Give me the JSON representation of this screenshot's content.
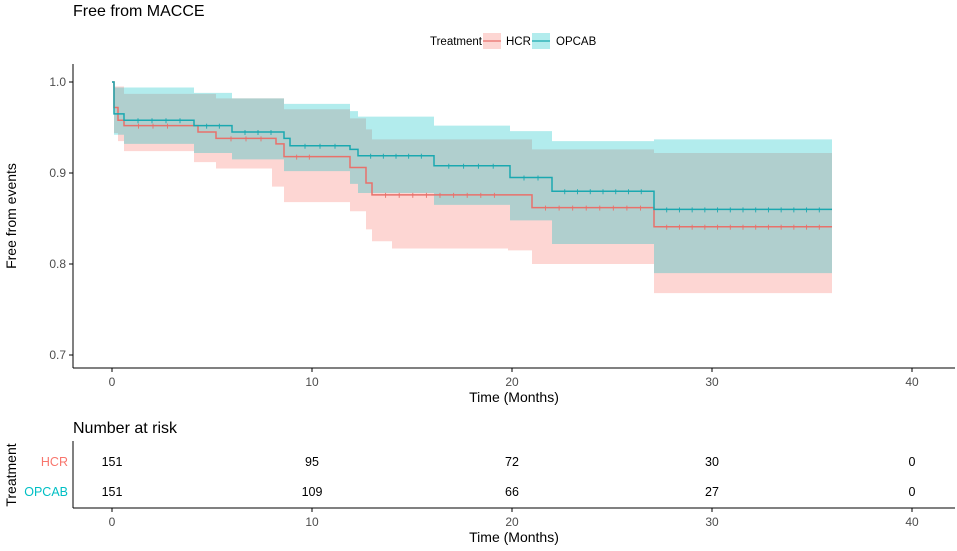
{
  "chart_data": {
    "type": "kaplan-meier step line with confidence bands and risk table",
    "title": "Free from MACCE",
    "xlabel": "Time (Months)",
    "ylabel": "Free from events",
    "xlim": [
      -2,
      40
    ],
    "ylim": [
      0.69,
      1.0
    ],
    "xticks": [
      0,
      10,
      20,
      30,
      40
    ],
    "yticks": [
      0.7,
      0.8,
      0.9,
      1.0
    ],
    "ytick_labels": [
      "0.7",
      "0.8",
      "0.9",
      "1.0"
    ],
    "grid": false,
    "legend": {
      "title": "Treatment",
      "position": "top",
      "entries": [
        "HCR",
        "OPCAB"
      ]
    },
    "series": [
      {
        "name": "HCR",
        "color": "#e8716b",
        "band_color": "#f8766d",
        "steps": [
          [
            0,
            1.0
          ],
          [
            0.1,
            0.972
          ],
          [
            0.3,
            0.958
          ],
          [
            0.6,
            0.952
          ],
          [
            3.5,
            0.952
          ],
          [
            4.3,
            0.945
          ],
          [
            5.2,
            0.938
          ],
          [
            8.2,
            0.932
          ],
          [
            8.6,
            0.918
          ],
          [
            10.5,
            0.918
          ],
          [
            11.9,
            0.906
          ],
          [
            12.7,
            0.889
          ],
          [
            13.0,
            0.876
          ],
          [
            19.8,
            0.876
          ],
          [
            21.0,
            0.862
          ],
          [
            27.1,
            0.862
          ],
          [
            27.1,
            0.841
          ],
          [
            36.0,
            0.841
          ]
        ],
        "lower": [
          [
            0,
            1.0
          ],
          [
            0.1,
            0.944
          ],
          [
            0.3,
            0.935
          ],
          [
            0.6,
            0.924
          ],
          [
            4.1,
            0.912
          ],
          [
            5.2,
            0.905
          ],
          [
            8.0,
            0.885
          ],
          [
            8.6,
            0.868
          ],
          [
            11.9,
            0.858
          ],
          [
            12.7,
            0.838
          ],
          [
            13.0,
            0.825
          ],
          [
            14.0,
            0.817
          ],
          [
            19.8,
            0.815
          ],
          [
            21.0,
            0.8
          ],
          [
            27.1,
            0.768
          ],
          [
            36.0,
            0.768
          ]
        ],
        "upper": [
          [
            0,
            1.0
          ],
          [
            0.1,
            0.995
          ],
          [
            0.6,
            0.987
          ],
          [
            5.2,
            0.982
          ],
          [
            8.6,
            0.97
          ],
          [
            11.9,
            0.96
          ],
          [
            12.7,
            0.948
          ],
          [
            13.0,
            0.937
          ],
          [
            21.0,
            0.926
          ],
          [
            27.1,
            0.922
          ],
          [
            36.0,
            0.922
          ]
        ]
      },
      {
        "name": "OPCAB",
        "color": "#1aa8b0",
        "band_color": "#00bfc4",
        "steps": [
          [
            0,
            1.0
          ],
          [
            0.1,
            0.965
          ],
          [
            0.6,
            0.958
          ],
          [
            4.1,
            0.952
          ],
          [
            6.0,
            0.945
          ],
          [
            8.6,
            0.938
          ],
          [
            8.9,
            0.93
          ],
          [
            11.9,
            0.926
          ],
          [
            12.3,
            0.919
          ],
          [
            16.1,
            0.908
          ],
          [
            19.8,
            0.908
          ],
          [
            19.9,
            0.895
          ],
          [
            22.0,
            0.88
          ],
          [
            27.1,
            0.86
          ],
          [
            36.0,
            0.86
          ]
        ],
        "lower": [
          [
            0,
            1.0
          ],
          [
            0.1,
            0.942
          ],
          [
            0.6,
            0.932
          ],
          [
            4.1,
            0.922
          ],
          [
            6.0,
            0.915
          ],
          [
            8.6,
            0.902
          ],
          [
            11.9,
            0.888
          ],
          [
            12.3,
            0.878
          ],
          [
            16.1,
            0.865
          ],
          [
            19.9,
            0.848
          ],
          [
            22.0,
            0.822
          ],
          [
            27.1,
            0.79
          ],
          [
            36.0,
            0.79
          ]
        ],
        "upper": [
          [
            0,
            1.0
          ],
          [
            0.1,
            0.994
          ],
          [
            4.1,
            0.988
          ],
          [
            6.0,
            0.982
          ],
          [
            8.6,
            0.976
          ],
          [
            11.9,
            0.968
          ],
          [
            12.3,
            0.962
          ],
          [
            16.1,
            0.952
          ],
          [
            19.9,
            0.946
          ],
          [
            22.0,
            0.935
          ],
          [
            27.1,
            0.937
          ],
          [
            36.0,
            0.937
          ]
        ]
      }
    ],
    "risk_table": {
      "title": "Number at risk",
      "ylabel": "Treatment",
      "xlabel": "Time (Months)",
      "times": [
        0,
        10,
        20,
        30,
        40
      ],
      "rows": [
        {
          "name": "HCR",
          "color": "#f8766d",
          "counts": [
            151,
            95,
            72,
            30,
            0
          ]
        },
        {
          "name": "OPCAB",
          "color": "#00bfc4",
          "counts": [
            151,
            109,
            66,
            27,
            0
          ]
        }
      ]
    }
  }
}
